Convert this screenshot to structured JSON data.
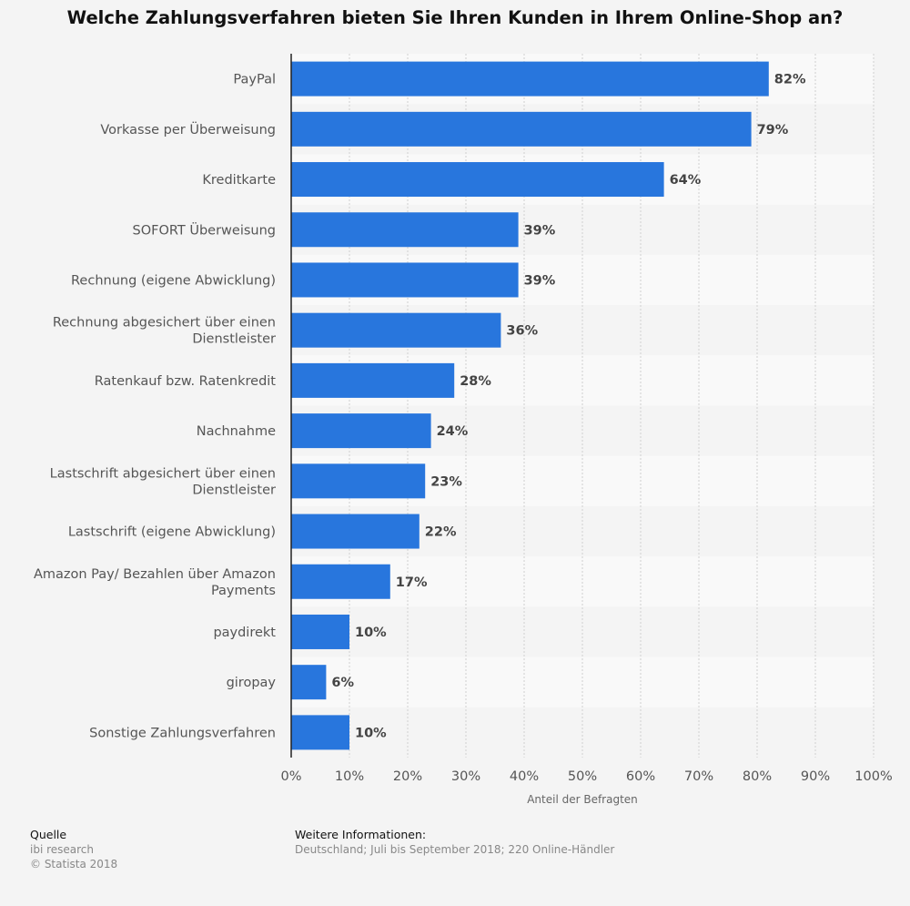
{
  "title": "Welche Zahlungsverfahren bieten Sie Ihren Kunden in Ihrem Online-Shop an?",
  "chart_data": {
    "type": "bar",
    "orientation": "horizontal",
    "categories": [
      [
        "PayPal"
      ],
      [
        "Vorkasse per Überweisung"
      ],
      [
        "Kreditkarte"
      ],
      [
        "SOFORT Überweisung"
      ],
      [
        "Rechnung (eigene Abwicklung)"
      ],
      [
        "Rechnung abgesichert über einen",
        "Dienstleister"
      ],
      [
        "Ratenkauf bzw. Ratenkredit"
      ],
      [
        "Nachnahme"
      ],
      [
        "Lastschrift abgesichert über einen",
        "Dienstleister"
      ],
      [
        "Lastschrift (eigene Abwicklung)"
      ],
      [
        "Amazon Pay/ Bezahlen über Amazon",
        "Payments"
      ],
      [
        "paydirekt"
      ],
      [
        "giropay"
      ],
      [
        "Sonstige Zahlungsverfahren"
      ]
    ],
    "values": [
      82,
      79,
      64,
      39,
      39,
      36,
      28,
      24,
      23,
      22,
      17,
      10,
      6,
      10
    ],
    "value_labels": [
      "82%",
      "79%",
      "64%",
      "39%",
      "39%",
      "36%",
      "28%",
      "24%",
      "23%",
      "22%",
      "17%",
      "10%",
      "6%",
      "10%"
    ],
    "xlim": [
      0,
      100
    ],
    "x_ticks": [
      "0%",
      "10%",
      "20%",
      "30%",
      "40%",
      "50%",
      "60%",
      "70%",
      "80%",
      "90%",
      "100%"
    ],
    "xlabel": "Anteil der Befragten",
    "grid": true,
    "bar_color": "#2876dd"
  },
  "footer": {
    "source_heading": "Quelle",
    "source_lines": [
      "ibi research",
      "© Statista 2018"
    ],
    "info_heading": "Weitere Informationen:",
    "info_text": "Deutschland; Juli bis September 2018; 220 Online-Händler"
  }
}
